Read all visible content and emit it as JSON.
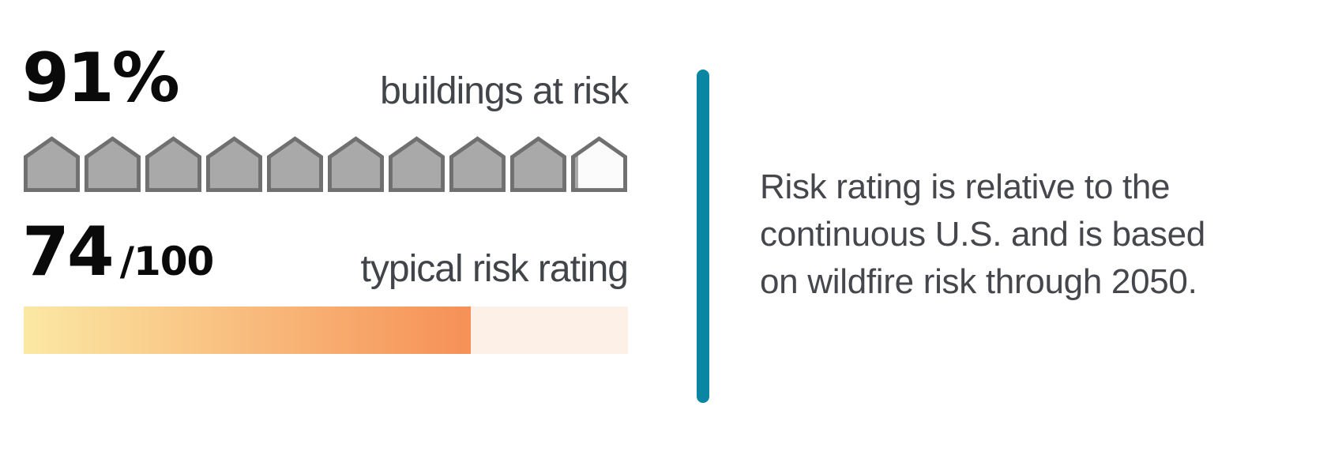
{
  "stats": {
    "buildings": {
      "value": 91,
      "display": "91%",
      "label": "buildings at risk",
      "icon_count": 10,
      "icons_filled": 9.1
    },
    "rating": {
      "value": 74,
      "display": "74",
      "denominator": "/100",
      "max": 100,
      "label": "typical risk rating"
    }
  },
  "note": {
    "text": "Risk rating is relative to the continuous U.S. and is based on wildfire risk through 2050.",
    "lines": [
      "Risk rating is relative to the",
      "continuous U.S. and is based",
      "on wildfire risk through 2050."
    ]
  },
  "colors": {
    "divider": "#0b86a2",
    "house_filled": "#a9a9a9",
    "house_empty": "#fbfbfb",
    "house_stroke": "#707070",
    "bar_track": "#fdf0e7",
    "bar_gradient_start": "#fbe8a3",
    "bar_gradient_end": "#f69057",
    "big_number_text": "#0a0a0a",
    "label_text": "#414449",
    "note_text": "#45474c"
  },
  "chart_data": [
    {
      "type": "pictograph",
      "title": "buildings at risk",
      "value": 91,
      "unit": "%",
      "icon": "house",
      "icons_total": 10,
      "icons_filled": 9.1,
      "filled_color": "#a9a9a9",
      "empty_color": "#fbfbfb"
    },
    {
      "type": "bar",
      "title": "typical risk rating",
      "value": 74,
      "max": 100,
      "style": "horizontal progress, yellow-to-orange gradient fill on pale peach track",
      "annotation": "Risk rating is relative to the continuous U.S. and is based on wildfire risk through 2050."
    }
  ]
}
